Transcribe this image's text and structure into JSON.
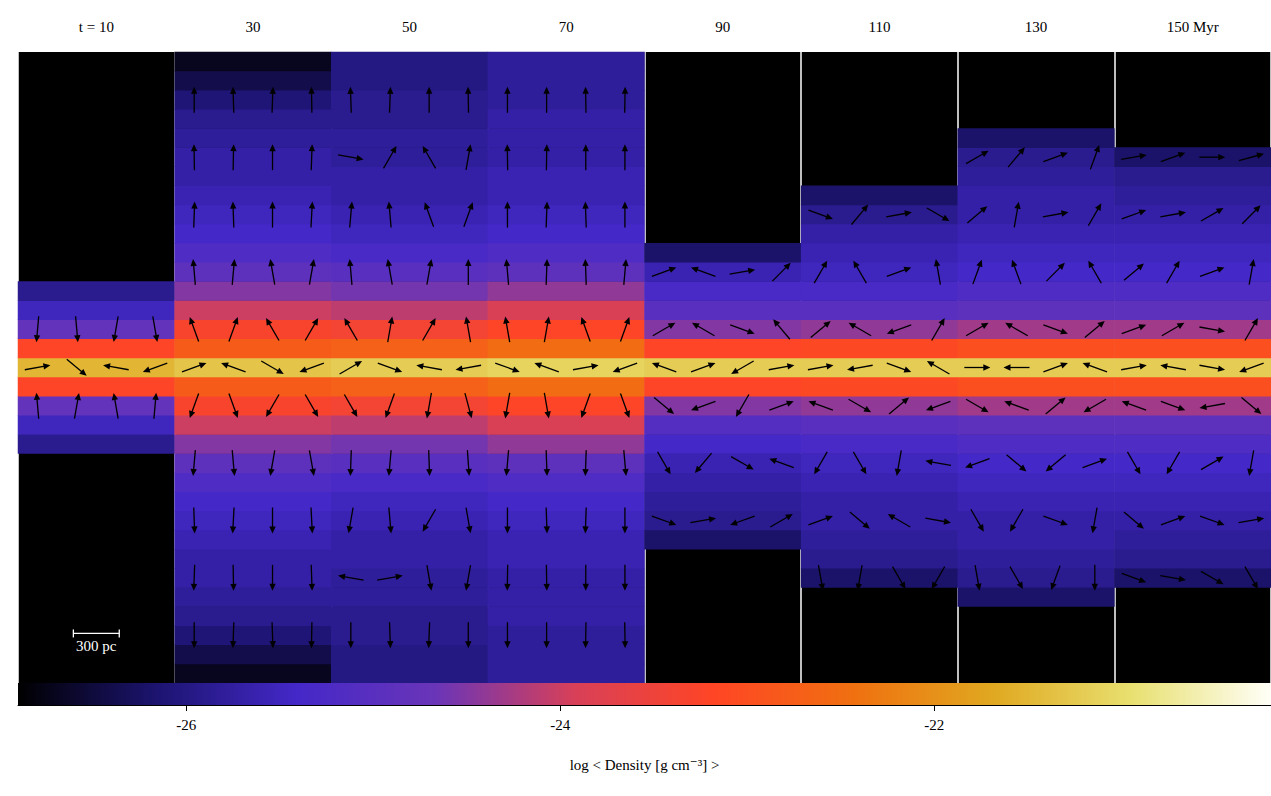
{
  "chart_data": {
    "type": "heatmap",
    "categories": [
      "t = 10",
      "30",
      "50",
      "70",
      "90",
      "110",
      "130",
      "150 Myr"
    ],
    "tick_labels": "x",
    "heights": [
      -2000,
      -1875,
      -1750,
      -1625,
      -1500,
      -1375,
      -1250,
      -1125,
      -1000,
      -875,
      -750,
      -625,
      -500,
      -375,
      -250,
      -125,
      0,
      125,
      250,
      375,
      500,
      625,
      750,
      875,
      1000,
      1125,
      1250,
      1375,
      1500,
      1625,
      1750,
      1875,
      2000
    ],
    "density": [
      [
        null,
        null,
        null,
        null,
        null,
        null,
        null,
        null,
        null,
        null,
        null,
        null,
        -25.9,
        -25.5,
        -24.8,
        -23.2,
        -21.5,
        -23.2,
        -24.8,
        -25.5,
        -25.9,
        null,
        null,
        null,
        null,
        null,
        null,
        null,
        null,
        null,
        null,
        null,
        null
      ],
      [
        -26.7,
        -26.4,
        -26.1,
        -25.9,
        -25.8,
        -25.7,
        -25.7,
        -25.6,
        -25.5,
        -25.4,
        -25.2,
        -24.9,
        -24.5,
        -24.0,
        -23.3,
        -22.8,
        -21.3,
        -22.8,
        -23.3,
        -24.0,
        -24.5,
        -24.9,
        -25.2,
        -25.4,
        -25.5,
        -25.6,
        -25.7,
        -25.7,
        -25.8,
        -25.9,
        -26.1,
        -26.4,
        -26.7
      ],
      [
        -26.0,
        -26.0,
        -25.9,
        -25.9,
        -25.8,
        -25.8,
        -25.7,
        -25.7,
        -25.6,
        -25.5,
        -25.3,
        -25.0,
        -24.6,
        -24.1,
        -23.4,
        -22.7,
        -21.2,
        -22.7,
        -23.4,
        -24.1,
        -24.6,
        -25.0,
        -25.3,
        -25.5,
        -25.6,
        -25.7,
        -25.7,
        -25.8,
        -25.8,
        -25.9,
        -25.9,
        -26.0,
        -26.0
      ],
      [
        -25.8,
        -25.8,
        -25.8,
        -25.7,
        -25.7,
        -25.7,
        -25.6,
        -25.6,
        -25.5,
        -25.4,
        -25.2,
        -24.9,
        -24.4,
        -23.9,
        -23.2,
        -22.5,
        -21.1,
        -22.5,
        -23.2,
        -23.9,
        -24.4,
        -24.9,
        -25.2,
        -25.4,
        -25.5,
        -25.6,
        -25.6,
        -25.7,
        -25.7,
        -25.7,
        -25.8,
        -25.8,
        -25.8
      ],
      [
        null,
        null,
        null,
        null,
        null,
        null,
        null,
        -26.2,
        -25.9,
        -25.8,
        -25.7,
        -25.6,
        -25.4,
        -25.1,
        -24.5,
        -23.2,
        -21.2,
        -23.2,
        -24.5,
        -25.0,
        -25.3,
        -25.6,
        -26.2,
        null,
        null,
        null,
        null,
        null,
        null,
        null,
        null,
        null,
        null
      ],
      [
        null,
        null,
        null,
        null,
        null,
        -26.2,
        -25.9,
        -25.8,
        -25.7,
        -25.7,
        -25.6,
        -25.5,
        -25.3,
        -25.0,
        -24.4,
        -23.1,
        -21.2,
        -23.1,
        -24.4,
        -25.0,
        -25.3,
        -25.5,
        -25.6,
        -25.7,
        -25.9,
        -26.2,
        null,
        null,
        null,
        null,
        null,
        null,
        null
      ],
      [
        null,
        null,
        null,
        null,
        -26.2,
        -25.9,
        -25.8,
        -25.7,
        -25.7,
        -25.6,
        -25.5,
        -25.4,
        -25.2,
        -24.9,
        -24.3,
        -23.0,
        -21.2,
        -23.0,
        -24.3,
        -24.9,
        -25.2,
        -25.4,
        -25.5,
        -25.6,
        -25.7,
        -25.7,
        -25.8,
        -25.9,
        -26.2,
        null,
        null,
        null,
        null
      ],
      [
        null,
        null,
        null,
        null,
        null,
        -26.2,
        -25.9,
        -25.8,
        -25.7,
        -25.6,
        -25.5,
        -25.4,
        -25.2,
        -24.9,
        -24.3,
        -23.0,
        -21.2,
        -23.0,
        -24.3,
        -24.9,
        -25.2,
        -25.4,
        -25.5,
        -25.6,
        -25.7,
        -25.8,
        -25.9,
        -26.2,
        null,
        null,
        null,
        null,
        null
      ]
    ],
    "colorbar": {
      "label": "log < Density [g cm⁻³] >",
      "range": [
        -26.9,
        -20.2
      ],
      "ticks": [
        -26,
        -24,
        -22
      ],
      "colors": [
        "#000000",
        "#1c1470",
        "#4428c8",
        "#6a35b8",
        "#d84058",
        "#ff4525",
        "#f07010",
        "#e0a820",
        "#e8e070",
        "#fffff8"
      ]
    },
    "arrows": {
      "heights": [
        -1750,
        -1375,
        -1000,
        -625,
        -250,
        0,
        250,
        625,
        1000,
        1375,
        1750
      ],
      "angles": [
        [
          [
            null,
            null,
            null,
            null
          ],
          [
            null,
            null,
            null,
            null
          ],
          [
            null,
            null,
            null,
            null
          ],
          [
            null,
            null,
            null,
            null
          ],
          [
            95,
            80,
            100,
            85
          ],
          [
            10,
            -40,
            170,
            200
          ],
          [
            -95,
            -85,
            -100,
            -80
          ],
          [
            null,
            null,
            null,
            null
          ],
          [
            null,
            null,
            null,
            null
          ],
          [
            null,
            null,
            null,
            null
          ],
          [
            null,
            null,
            null,
            null
          ]
        ],
        [
          [
            -90,
            -92,
            -88,
            -91
          ],
          [
            -92,
            -89,
            -90,
            -88
          ],
          [
            -88,
            -93,
            -90,
            -87
          ],
          [
            -95,
            -85,
            -100,
            -80
          ],
          [
            -110,
            -70,
            -120,
            -60
          ],
          [
            20,
            160,
            -30,
            200
          ],
          [
            110,
            70,
            120,
            60
          ],
          [
            95,
            85,
            100,
            80
          ],
          [
            88,
            92,
            90,
            87
          ],
          [
            91,
            89,
            90,
            88
          ],
          [
            90,
            92,
            88,
            91
          ]
        ],
        [
          [
            -90,
            -88,
            -92,
            -90
          ],
          [
            170,
            10,
            -80,
            -100
          ],
          [
            -100,
            -85,
            -120,
            -80
          ],
          [
            -92,
            -95,
            -88,
            -86
          ],
          [
            -60,
            -110,
            -100,
            -75
          ],
          [
            30,
            -20,
            170,
            190
          ],
          [
            120,
            80,
            60,
            100
          ],
          [
            95,
            100,
            80,
            90
          ],
          [
            85,
            95,
            110,
            70
          ],
          [
            -10,
            60,
            120,
            80
          ],
          [
            92,
            88,
            90,
            91
          ]
        ],
        [
          [
            -90,
            -90,
            -91,
            -89
          ],
          [
            -91,
            -89,
            -90,
            -90
          ],
          [
            -90,
            -88,
            -92,
            -90
          ],
          [
            -95,
            -88,
            -92,
            -85
          ],
          [
            -100,
            -80,
            -110,
            -70
          ],
          [
            -20,
            160,
            10,
            200
          ],
          [
            100,
            80,
            110,
            70
          ],
          [
            95,
            88,
            92,
            85
          ],
          [
            90,
            88,
            92,
            90
          ],
          [
            91,
            89,
            90,
            90
          ],
          [
            90,
            90,
            91,
            89
          ]
        ],
        [
          [
            null,
            null,
            null,
            null
          ],
          [
            null,
            null,
            null,
            null
          ],
          [
            -20,
            10,
            -160,
            30
          ],
          [
            -60,
            -130,
            -30,
            160
          ],
          [
            -40,
            200,
            -120,
            20
          ],
          [
            160,
            20,
            -150,
            10
          ],
          [
            30,
            150,
            -20,
            130
          ],
          [
            20,
            160,
            10,
            45
          ],
          [
            null,
            null,
            null,
            null
          ],
          [
            null,
            null,
            null,
            null
          ],
          [
            null,
            null,
            null,
            null
          ]
        ],
        [
          [
            null,
            null,
            null,
            null
          ],
          [
            -80,
            -100,
            -60,
            -120
          ],
          [
            20,
            -40,
            150,
            -10
          ],
          [
            -120,
            -60,
            -100,
            170
          ],
          [
            160,
            -30,
            40,
            200
          ],
          [
            10,
            190,
            -20,
            150
          ],
          [
            40,
            150,
            -160,
            60
          ],
          [
            60,
            120,
            20,
            100
          ],
          [
            -20,
            50,
            10,
            -30
          ],
          [
            null,
            null,
            null,
            null
          ],
          [
            null,
            null,
            null,
            null
          ]
        ],
        [
          [
            null,
            null,
            null,
            null
          ],
          [
            -80,
            -60,
            -110,
            -90
          ],
          [
            -60,
            -120,
            -20,
            -100
          ],
          [
            200,
            -40,
            -140,
            20
          ],
          [
            -30,
            160,
            40,
            -150
          ],
          [
            0,
            180,
            20,
            160
          ],
          [
            30,
            150,
            -20,
            40
          ],
          [
            70,
            110,
            45,
            120
          ],
          [
            40,
            80,
            10,
            60
          ],
          [
            30,
            50,
            20,
            70
          ],
          [
            null,
            null,
            null,
            null
          ]
        ],
        [
          [
            null,
            null,
            null,
            null
          ],
          [
            -20,
            -10,
            -30,
            -60
          ],
          [
            -40,
            20,
            -20,
            10
          ],
          [
            -60,
            -120,
            30,
            -100
          ],
          [
            160,
            -20,
            190,
            -40
          ],
          [
            10,
            170,
            -10,
            200
          ],
          [
            20,
            30,
            -10,
            60
          ],
          [
            40,
            60,
            20,
            80
          ],
          [
            20,
            10,
            30,
            45
          ],
          [
            10,
            20,
            0,
            15
          ],
          [
            null,
            null,
            null,
            null
          ]
        ]
      ]
    },
    "scale_bar": {
      "length": 300,
      "label": "300 pc"
    }
  }
}
